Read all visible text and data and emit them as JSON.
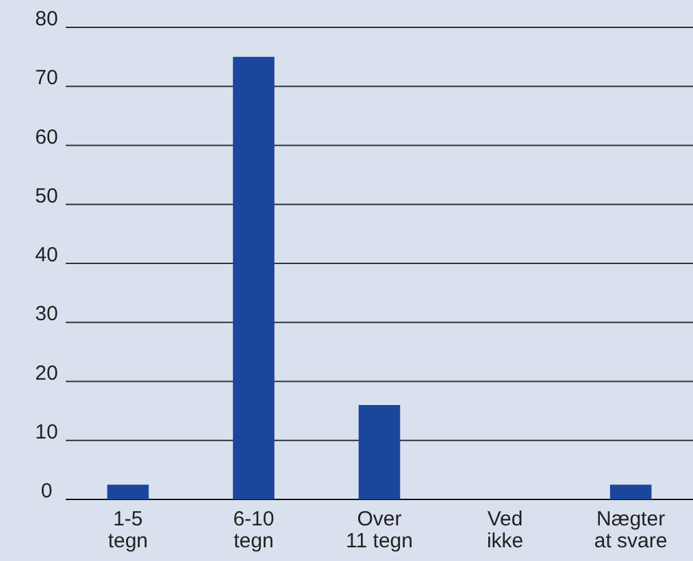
{
  "chart_data": {
    "type": "bar",
    "categories": [
      "1-5 tegn",
      "6-10 tegn",
      "Over 11 tegn",
      "Ved ikke",
      "Nægter at svare"
    ],
    "values": [
      2.5,
      75,
      16,
      0,
      2.5
    ],
    "color": "#1a479c",
    "ylim": [
      0,
      80
    ],
    "yticks": [
      0,
      10,
      20,
      30,
      40,
      50,
      60,
      70,
      80
    ],
    "grid": "y"
  }
}
